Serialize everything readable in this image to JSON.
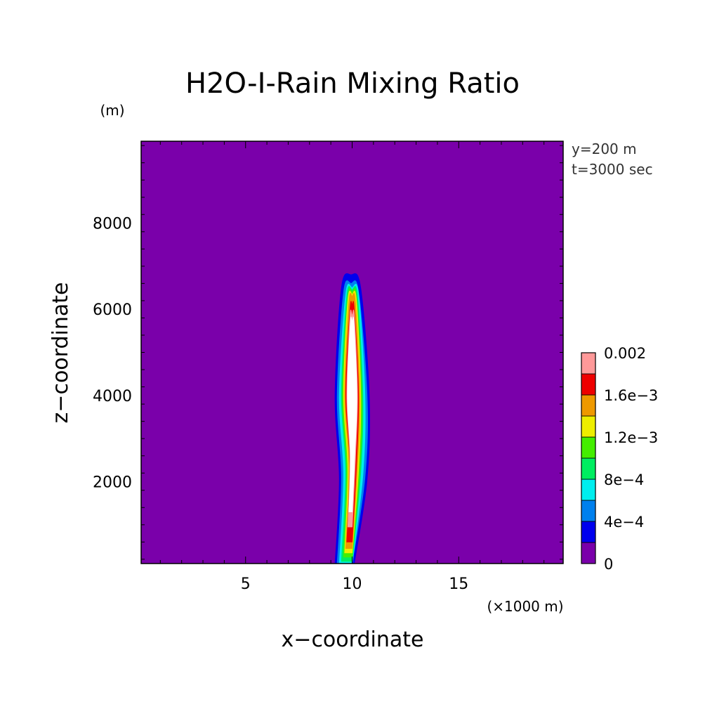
{
  "chart_data": {
    "type": "contour",
    "title": "H2O-I-Rain Mixing Ratio",
    "xlabel": "x−coordinate",
    "ylabel": "z−coordinate",
    "x_unit": "(×1000 m)",
    "y_unit": "(m)",
    "info": [
      "y=200 m",
      "t=3000 sec"
    ],
    "xlim": [
      0.1,
      19.9
    ],
    "ylim": [
      100,
      9900
    ],
    "x_ticks": [
      5,
      10,
      15
    ],
    "x_tick_labels": [
      "5",
      "10",
      "15"
    ],
    "y_ticks": [
      2000,
      4000,
      6000,
      8000
    ],
    "y_tick_labels": [
      "2000",
      "4000",
      "6000",
      "8000"
    ],
    "colorbar": {
      "levels": [
        0,
        0.0002,
        0.0004,
        0.0006,
        0.0008,
        0.001,
        0.0012,
        0.0014,
        0.0016,
        0.0018,
        0.002
      ],
      "labels": [
        "0",
        "4e−4",
        "8e−4",
        "1.2e−3",
        "1.6e−3",
        "0.002"
      ],
      "colors": [
        "#7a00aa",
        "#0000ee",
        "#0080ee",
        "#00eeee",
        "#00ee60",
        "#44ee00",
        "#eeee00",
        "#ee9900",
        "#ee0000",
        "#ff9999"
      ]
    },
    "background_color": "#7a00aa",
    "overflow_color": "#ffffff",
    "contours": [
      {
        "level": 0.0001,
        "color": "#0000ee",
        "x": [
          9.2,
          10.1,
          9.4,
          10.7,
          9.2,
          10.8,
          9.5,
          10.4
        ],
        "z": [
          100,
          100,
          2050,
          2050,
          4000,
          4000,
          6500,
          6800
        ]
      },
      {
        "level": 0.0003,
        "color": "#0080ee",
        "x": [
          9.3,
          10.0,
          9.5,
          10.6,
          9.3,
          10.7,
          9.6,
          10.3
        ],
        "z": [
          100,
          100,
          2100,
          2100,
          4000,
          4000,
          6400,
          6600
        ]
      },
      {
        "level": 0.0005,
        "color": "#00eeee",
        "x": [
          9.4,
          10.0,
          9.6,
          10.5,
          9.4,
          10.6,
          9.7,
          10.3
        ],
        "z": [
          100,
          100,
          2150,
          2150,
          4000,
          4000,
          6350,
          6500
        ]
      },
      {
        "level": 0.0007,
        "color": "#00ee60",
        "x": [
          9.5,
          10.0,
          9.7,
          10.4,
          9.5,
          10.5,
          9.75,
          10.25
        ],
        "z": [
          150,
          150,
          2200,
          2200,
          4000,
          4000,
          6300,
          6450
        ]
      },
      {
        "level": 0.0009,
        "color": "#44ee00",
        "x": [
          9.6,
          10.0,
          9.75,
          10.35,
          9.55,
          10.45,
          9.8,
          10.2
        ],
        "z": [
          250,
          250,
          2250,
          2250,
          4000,
          4000,
          6250,
          6400
        ]
      },
      {
        "level": 0.0011,
        "color": "#eeee00",
        "x": [
          9.65,
          10.0,
          9.8,
          10.3,
          9.6,
          10.4,
          9.8,
          10.2
        ],
        "z": [
          350,
          350,
          2300,
          2300,
          4000,
          4000,
          6200,
          6350
        ]
      },
      {
        "level": 0.0013,
        "color": "#ee9900",
        "x": [
          9.7,
          10.0,
          9.85,
          10.25,
          9.65,
          10.35,
          9.85,
          10.15
        ],
        "z": [
          450,
          450,
          2350,
          2350,
          4000,
          4000,
          6150,
          6300
        ]
      },
      {
        "level": 0.0015,
        "color": "#ee0000",
        "x": [
          9.75,
          10.0,
          9.9,
          10.2,
          9.7,
          10.3,
          9.9,
          10.1
        ],
        "z": [
          600,
          600,
          2400,
          2400,
          4000,
          4000,
          6000,
          6100
        ]
      },
      {
        "level": 0.0017,
        "color": "#ff9999",
        "x": [
          9.8,
          10.0,
          9.9,
          10.15,
          9.75,
          10.25,
          9.9,
          10.1
        ],
        "z": [
          950,
          950,
          2500,
          2500,
          4000,
          4000,
          5850,
          5850
        ]
      },
      {
        "level": 0.0019,
        "color": "#ffffff",
        "x": [
          9.85,
          10.0,
          9.92,
          10.12,
          9.78,
          10.22,
          9.92,
          10.08
        ],
        "z": [
          1300,
          1300,
          2600,
          2600,
          4000,
          4000,
          5700,
          5700
        ]
      }
    ]
  }
}
